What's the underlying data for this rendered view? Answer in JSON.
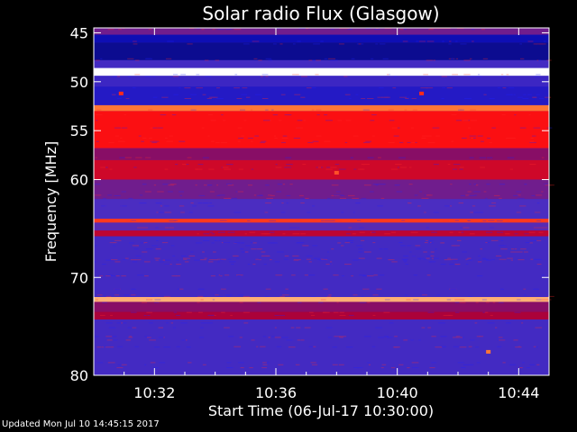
{
  "chart_data": {
    "type": "heatmap",
    "title": "Solar radio Flux (Glasgow)",
    "xlabel": "Start Time (06-Jul-17 10:30:00)",
    "ylabel": "Frequency [MHz]",
    "x_range_minutes": [
      0,
      15
    ],
    "x_ticks": [
      {
        "minute": 2,
        "label": "10:32"
      },
      {
        "minute": 6,
        "label": "10:36"
      },
      {
        "minute": 10,
        "label": "10:40"
      },
      {
        "minute": 14,
        "label": "10:44"
      }
    ],
    "ylim": [
      80,
      44.5
    ],
    "y_ticks": [
      {
        "mhz": 45,
        "label": "45"
      },
      {
        "mhz": 50,
        "label": "50"
      },
      {
        "mhz": 55,
        "label": "55"
      },
      {
        "mhz": 60,
        "label": "60"
      },
      {
        "mhz": 70,
        "label": "70"
      },
      {
        "mhz": 80,
        "label": "80"
      }
    ],
    "colormap": [
      "#000000",
      "#1010c8",
      "#5030c0",
      "#a00040",
      "#ff1010",
      "#ff9040",
      "#ffffff"
    ],
    "background_intensity": 0.28,
    "bands": [
      {
        "from": 44.5,
        "to": 45.2,
        "intensity": 0.4
      },
      {
        "from": 45.2,
        "to": 46.0,
        "intensity": 0.15
      },
      {
        "from": 46.0,
        "to": 47.8,
        "intensity": 0.12
      },
      {
        "from": 47.8,
        "to": 48.6,
        "intensity": 0.3
      },
      {
        "from": 48.6,
        "to": 49.4,
        "intensity": 1.0
      },
      {
        "from": 49.4,
        "to": 50.5,
        "intensity": 0.28
      },
      {
        "from": 50.5,
        "to": 52.4,
        "intensity": 0.22
      },
      {
        "from": 52.4,
        "to": 53.0,
        "intensity": 0.8
      },
      {
        "from": 53.0,
        "to": 56.8,
        "intensity": 0.66
      },
      {
        "from": 56.8,
        "to": 58.0,
        "intensity": 0.45
      },
      {
        "from": 58.0,
        "to": 60.0,
        "intensity": 0.58
      },
      {
        "from": 60.0,
        "to": 62.0,
        "intensity": 0.4
      },
      {
        "from": 62.0,
        "to": 64.0,
        "intensity": 0.32
      },
      {
        "from": 64.0,
        "to": 64.4,
        "intensity": 0.72
      },
      {
        "from": 64.4,
        "to": 65.2,
        "intensity": 0.35
      },
      {
        "from": 65.2,
        "to": 65.8,
        "intensity": 0.55
      },
      {
        "from": 65.8,
        "to": 72.0,
        "intensity": 0.3
      },
      {
        "from": 72.0,
        "to": 72.5,
        "intensity": 0.88
      },
      {
        "from": 72.5,
        "to": 73.5,
        "intensity": 0.45
      },
      {
        "from": 73.5,
        "to": 74.3,
        "intensity": 0.52
      },
      {
        "from": 74.3,
        "to": 80.0,
        "intensity": 0.3
      }
    ],
    "bursts": [
      {
        "minute": 8.0,
        "mhz": 59.3,
        "intensity": 0.75
      },
      {
        "minute": 0.9,
        "mhz": 51.2,
        "intensity": 0.7
      },
      {
        "minute": 10.8,
        "mhz": 51.2,
        "intensity": 0.7
      },
      {
        "minute": 13.0,
        "mhz": 77.6,
        "intensity": 0.8
      }
    ],
    "legend": "none",
    "grid": false
  },
  "footer": {
    "updated": "Updated Mon Jul 10 14:45:15 2017"
  }
}
